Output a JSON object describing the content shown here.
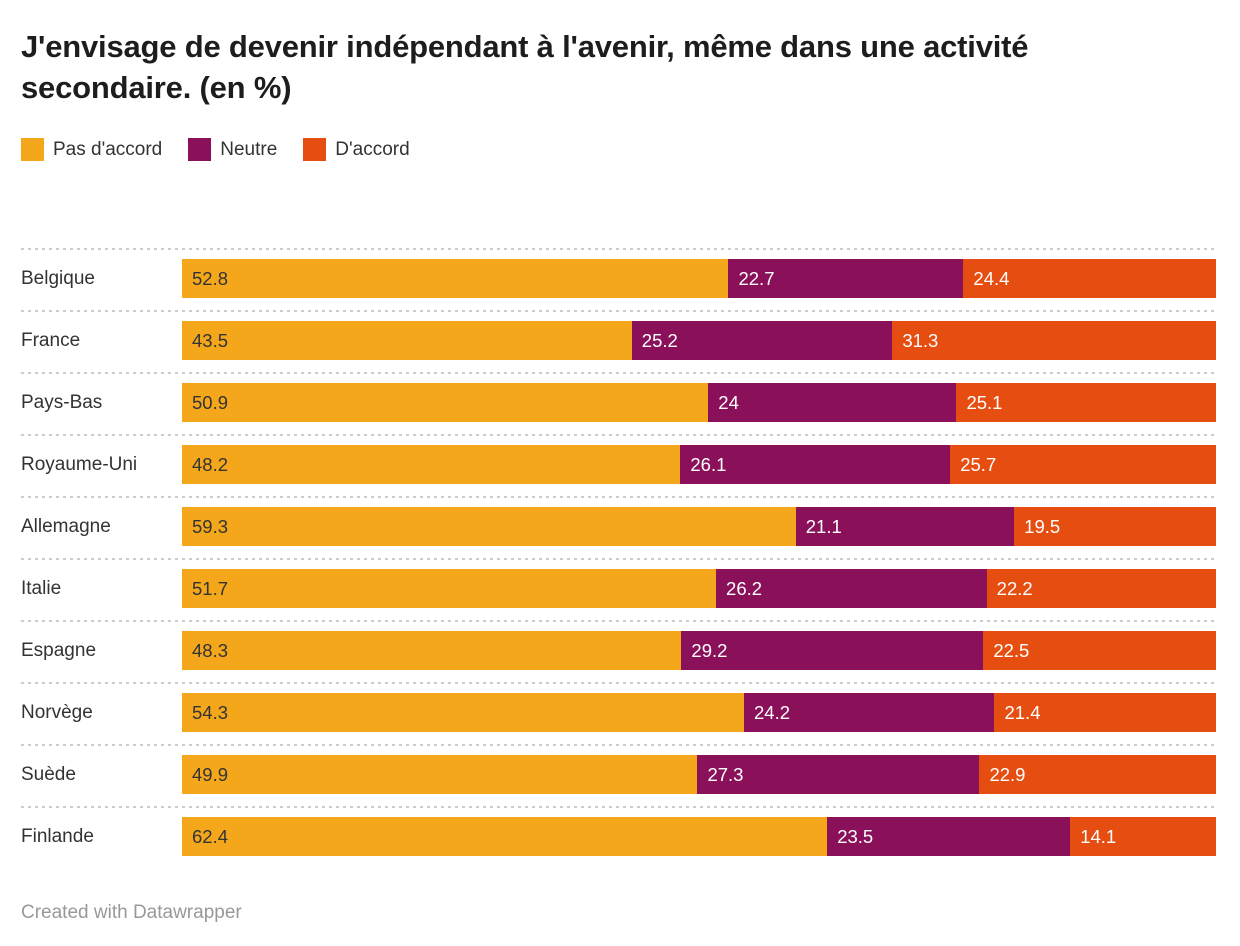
{
  "title": "J'envisage de devenir indépendant à l'avenir, même dans une activité secondaire. (en %)",
  "legend": [
    {
      "label": "Pas d'accord",
      "color": "#F5A71B"
    },
    {
      "label": "Neutre",
      "color": "#8B105A"
    },
    {
      "label": "D'accord",
      "color": "#E64E11"
    }
  ],
  "footer": "Created with Datawrapper",
  "colors": {
    "disagree": "#F5A71B",
    "neutral": "#8B105A",
    "agree": "#E64E11",
    "text_dark": "#333333",
    "text_light": "#ffffff",
    "separator": "#cccccc",
    "footer_text": "#999999"
  },
  "chart_data": {
    "type": "bar",
    "stacked": true,
    "orientation": "horizontal",
    "unit": "%",
    "title": "J'envisage de devenir indépendant à l'avenir, même dans une activité secondaire. (en %)",
    "xlabel": "",
    "ylabel": "",
    "xlim": [
      0,
      100
    ],
    "grid": false,
    "legend_position": "top",
    "categories": [
      "Belgique",
      "France",
      "Pays-Bas",
      "Royaume-Uni",
      "Allemagne",
      "Italie",
      "Espagne",
      "Norvège",
      "Suède",
      "Finlande"
    ],
    "series": [
      {
        "name": "Pas d'accord",
        "color": "#F5A71B",
        "values": [
          52.8,
          43.5,
          50.9,
          48.2,
          59.3,
          51.7,
          48.3,
          54.3,
          49.9,
          62.4
        ]
      },
      {
        "name": "Neutre",
        "color": "#8B105A",
        "values": [
          22.7,
          25.2,
          24,
          26.1,
          21.1,
          26.2,
          29.2,
          24.2,
          27.3,
          23.5
        ]
      },
      {
        "name": "D'accord",
        "color": "#E64E11",
        "values": [
          24.4,
          31.3,
          25.1,
          25.7,
          19.5,
          22.2,
          22.5,
          21.4,
          22.9,
          14.1
        ]
      }
    ]
  }
}
